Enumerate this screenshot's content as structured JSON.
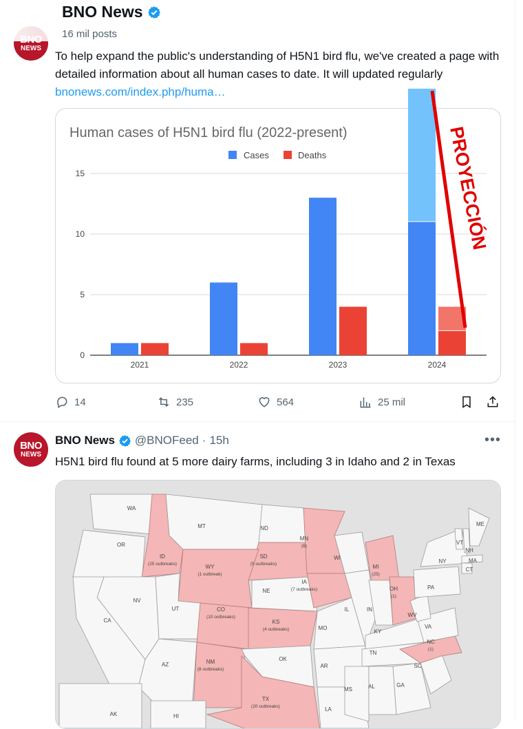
{
  "profile": {
    "name": "BNO News",
    "posts_count": "16 mil posts"
  },
  "avatar": {
    "line1": "BNO",
    "line2": "NEWS"
  },
  "tweet1": {
    "text": "To help expand the public's understanding of H5N1 bird flu, we've created a page with detailed information about all human cases to date. It will updated regularly",
    "link": "bnonews.com/index.php/huma…",
    "actions": {
      "replies": "14",
      "reposts": "235",
      "likes": "564",
      "views": "25 mil"
    },
    "overlay_text": "PROYECCIÓN"
  },
  "chart_data": {
    "type": "bar",
    "title": "Human cases of H5N1 bird flu (2022-present)",
    "categories": [
      "2021",
      "2022",
      "2023",
      "2024"
    ],
    "series": [
      {
        "name": "Cases",
        "values": [
          1,
          6,
          13,
          11
        ],
        "color": "#4285f4"
      },
      {
        "name": "Deaths",
        "values": [
          1,
          1,
          4,
          2
        ],
        "color": "#ea4335"
      }
    ],
    "projection": {
      "category": "2024",
      "cases_projected_top": 22,
      "deaths_projected_top": 4,
      "cases_color": "#73c2fb",
      "deaths_color": "#f2756a"
    },
    "yticks": [
      "0",
      "5",
      "10",
      "15"
    ],
    "ylim": [
      0,
      18
    ],
    "legend_position": "top-center",
    "grid": true
  },
  "tweet2": {
    "name": "BNO News",
    "handle": "@BNOFeed",
    "separator": "·",
    "time": "15h",
    "more": "•••",
    "text": "H5N1 bird flu found at 5 more dairy farms, including 3 in Idaho and 2 in Texas"
  },
  "map": {
    "affected_states": [
      {
        "abbr": "ID",
        "detail": "(25 outbreaks)"
      },
      {
        "abbr": "WY",
        "detail": "(1 outbreak)"
      },
      {
        "abbr": "SD",
        "detail": "(5 outbreaks)"
      },
      {
        "abbr": "MN",
        "detail": "(6)"
      },
      {
        "abbr": "IA",
        "detail": "(7 outbreaks)"
      },
      {
        "abbr": "MI",
        "detail": "(25)"
      },
      {
        "abbr": "OH",
        "detail": "(1)"
      },
      {
        "abbr": "CO",
        "detail": "(10 outbreaks)"
      },
      {
        "abbr": "KS",
        "detail": "(4 outbreaks)"
      },
      {
        "abbr": "NM",
        "detail": "(8 outbreaks)"
      },
      {
        "abbr": "TX",
        "detail": "(20 outbreaks)"
      },
      {
        "abbr": "NC",
        "detail": "(1)"
      }
    ],
    "other_states": [
      "WA",
      "OR",
      "MT",
      "ND",
      "NV",
      "CA",
      "UT",
      "AZ",
      "NE",
      "MO",
      "WI",
      "IL",
      "IN",
      "KY",
      "TN",
      "AR",
      "OK",
      "MS",
      "AL",
      "GA",
      "SC",
      "VA",
      "WV",
      "PA",
      "NY",
      "VT",
      "NH",
      "MA",
      "CT",
      "ME",
      "LA",
      "AK",
      "HI"
    ],
    "affected_color": "#f4b6b6",
    "state_color": "#f7f7f7",
    "water_color": "#e2e2e2"
  },
  "colors": {
    "accent": "#1d9bf0",
    "text": "#0f1419",
    "muted": "#536471",
    "annotation": "#e00000"
  }
}
